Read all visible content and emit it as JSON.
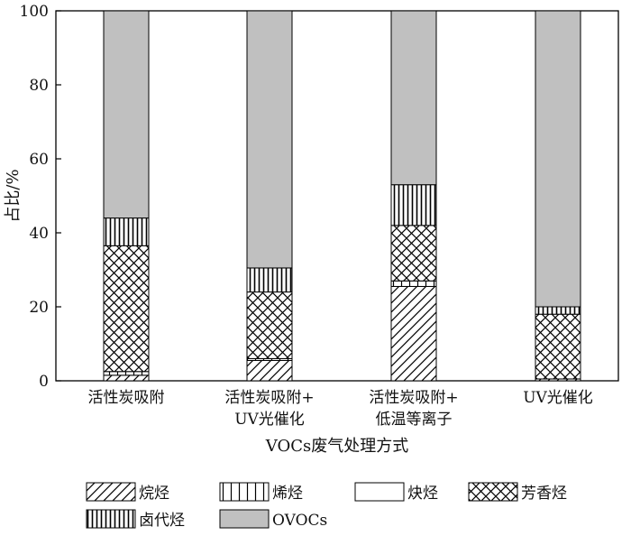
{
  "chart_data": {
    "type": "bar",
    "stacked": true,
    "title": "",
    "xlabel": "VOCs废气处理方式",
    "ylabel": "占比/%",
    "ylim": [
      0,
      100
    ],
    "yticks": [
      0,
      20,
      40,
      60,
      80,
      100
    ],
    "grid": false,
    "legend_position": "bottom",
    "categories": [
      [
        "活性炭吸附"
      ],
      [
        "活性炭吸附+",
        "UV光催化"
      ],
      [
        "活性炭吸附+",
        "低温等离子"
      ],
      [
        "UV光催化"
      ]
    ],
    "series": [
      {
        "name": "烷烃",
        "pattern": "diagonal",
        "values": [
          1.5,
          5.5,
          25.5,
          0.5
        ]
      },
      {
        "name": "烯烃",
        "pattern": "vertical-lines",
        "values": [
          1.0,
          0.5,
          1.5,
          0.0
        ]
      },
      {
        "name": "炔烃",
        "pattern": "blank",
        "values": [
          0.0,
          0.0,
          0.0,
          0.0
        ]
      },
      {
        "name": "芳香烃",
        "pattern": "crosshatch",
        "values": [
          34.0,
          18.0,
          15.0,
          17.5
        ]
      },
      {
        "name": "卤代烃",
        "pattern": "vertical-dense",
        "values": [
          7.5,
          6.5,
          11.0,
          2.0
        ]
      },
      {
        "name": "OVOCs",
        "pattern": "gray",
        "values": [
          56.0,
          69.5,
          47.0,
          80.0
        ]
      }
    ],
    "colors": {
      "ovocs_fill": "#c0c0c0",
      "stroke": "#000000",
      "background": "#ffffff"
    }
  }
}
